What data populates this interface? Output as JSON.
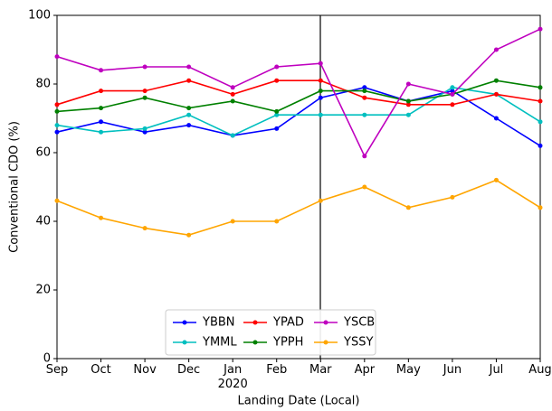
{
  "chart_data": {
    "type": "line",
    "x_label": "Landing Date (Local)",
    "y_label": "Conventional CDO (%)",
    "categories": [
      "Sep",
      "Oct",
      "Nov",
      "Dec",
      "Jan\n2020",
      "Feb",
      "Mar",
      "Apr",
      "May",
      "Jun",
      "Jul",
      "Aug"
    ],
    "series": [
      {
        "name": "YBBN",
        "color": "#0000ff",
        "values": [
          66,
          69,
          66,
          68,
          65,
          67,
          76,
          79,
          75,
          78,
          70,
          62
        ]
      },
      {
        "name": "YMML",
        "color": "#00bfbf",
        "values": [
          68,
          66,
          67,
          71,
          65,
          71,
          71,
          71,
          71,
          79,
          77,
          69
        ]
      },
      {
        "name": "YPAD",
        "color": "#ff0000",
        "values": [
          74,
          78,
          78,
          81,
          77,
          81,
          81,
          76,
          74,
          74,
          77,
          75
        ]
      },
      {
        "name": "YPPH",
        "color": "#008000",
        "values": [
          72,
          73,
          76,
          73,
          75,
          72,
          78,
          78,
          75,
          77,
          81,
          79
        ]
      },
      {
        "name": "YSCB",
        "color": "#bf00bf",
        "values": [
          88,
          84,
          85,
          85,
          79,
          85,
          86,
          59,
          80,
          77,
          90,
          96
        ]
      },
      {
        "name": "YSSY",
        "color": "#ffa500",
        "values": [
          46,
          41,
          38,
          36,
          40,
          40,
          46,
          50,
          44,
          47,
          52,
          44
        ]
      }
    ],
    "ylim": [
      0,
      100
    ],
    "yticks": [
      0,
      20,
      40,
      60,
      80,
      100
    ],
    "legend": "lower center",
    "grid": false
  }
}
